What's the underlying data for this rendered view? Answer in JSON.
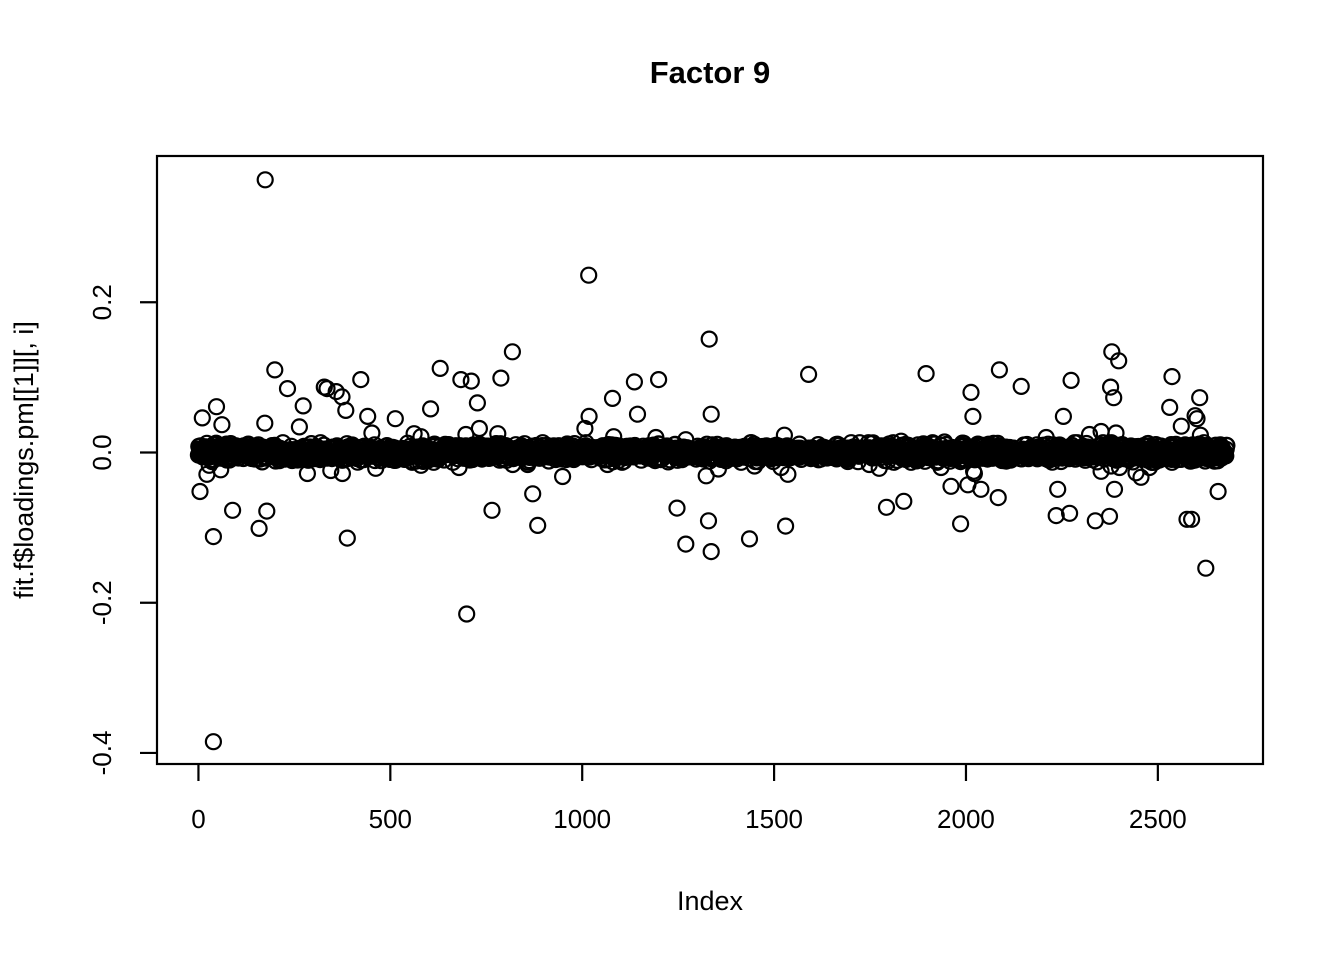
{
  "chart_data": {
    "type": "scatter",
    "title": "Factor 9",
    "xlabel": "Index",
    "ylabel": "fit.f$loadings.pm[[1]][, i]",
    "x_ticks": [
      0,
      500,
      1000,
      1500,
      2000,
      2500
    ],
    "y_ticks": [
      -0.4,
      -0.2,
      0.0,
      0.2
    ],
    "xlim": [
      -108,
      2774
    ],
    "ylim": [
      -0.4147,
      0.3947
    ],
    "n_points": 2680,
    "marker": "open-circle",
    "colors": {
      "foreground": "#000000",
      "background": "#ffffff"
    },
    "dense_band": {
      "description": "Dense horizontal band of ~2680 overlapping open circles centered at y=0, approx |y| < 0.013, spanning index 0 to ~2680",
      "center": 0.0,
      "half_width": 0.013
    },
    "outliers": [
      [
        174,
        0.363
      ],
      [
        1017,
        0.236
      ],
      [
        1331,
        0.151
      ],
      [
        818,
        0.134
      ],
      [
        2380,
        0.134
      ],
      [
        2398,
        0.122
      ],
      [
        630,
        0.112
      ],
      [
        199,
        0.11
      ],
      [
        2087,
        0.11
      ],
      [
        1896,
        0.105
      ],
      [
        1590,
        0.104
      ],
      [
        2537,
        0.101
      ],
      [
        788,
        0.099
      ],
      [
        423,
        0.097
      ],
      [
        684,
        0.097
      ],
      [
        1199,
        0.097
      ],
      [
        2274,
        0.096
      ],
      [
        711,
        0.095
      ],
      [
        1136,
        0.094
      ],
      [
        2144,
        0.088
      ],
      [
        328,
        0.087
      ],
      [
        2377,
        0.087
      ],
      [
        232,
        0.085
      ],
      [
        335,
        0.085
      ],
      [
        359,
        0.081
      ],
      [
        2013,
        0.08
      ],
      [
        374,
        0.074
      ],
      [
        2385,
        0.073
      ],
      [
        2609,
        0.073
      ],
      [
        1079,
        0.072
      ],
      [
        727,
        0.066
      ],
      [
        273,
        0.062
      ],
      [
        47,
        0.061
      ],
      [
        2531,
        0.06
      ],
      [
        605,
        0.058
      ],
      [
        384,
        0.056
      ],
      [
        1336,
        0.051
      ],
      [
        1144,
        0.051
      ],
      [
        2597,
        0.049
      ],
      [
        441,
        0.048
      ],
      [
        1018,
        0.048
      ],
      [
        2018,
        0.048
      ],
      [
        2254,
        0.048
      ],
      [
        10,
        0.046
      ],
      [
        513,
        0.045
      ],
      [
        2602,
        0.045
      ],
      [
        173,
        0.039
      ],
      [
        61,
        0.037
      ],
      [
        2561,
        0.035
      ],
      [
        263,
        0.034
      ],
      [
        1007,
        0.032
      ],
      [
        732,
        0.032
      ],
      [
        2352,
        0.028
      ],
      [
        452,
        0.026
      ],
      [
        2391,
        0.026
      ],
      [
        562,
        0.025
      ],
      [
        780,
        0.025
      ],
      [
        697,
        0.024
      ],
      [
        2322,
        0.024
      ],
      [
        1527,
        0.023
      ],
      [
        2611,
        0.023
      ],
      [
        580,
        0.021
      ],
      [
        1082,
        0.021
      ],
      [
        2209,
        0.02
      ],
      [
        1192,
        0.02
      ],
      [
        1270,
        0.017
      ],
      [
        1831,
        0.015
      ],
      [
        1944,
        0.014
      ],
      [
        1701,
        0.013
      ],
      [
        39,
        -0.385
      ],
      [
        699,
        -0.215
      ],
      [
        2625,
        -0.154
      ],
      [
        1336,
        -0.132
      ],
      [
        1270,
        -0.122
      ],
      [
        1436,
        -0.115
      ],
      [
        388,
        -0.114
      ],
      [
        39,
        -0.112
      ],
      [
        158,
        -0.101
      ],
      [
        1530,
        -0.098
      ],
      [
        884,
        -0.097
      ],
      [
        1986,
        -0.095
      ],
      [
        2337,
        -0.091
      ],
      [
        1329,
        -0.091
      ],
      [
        2576,
        -0.089
      ],
      [
        2588,
        -0.089
      ],
      [
        2374,
        -0.085
      ],
      [
        2235,
        -0.084
      ],
      [
        2270,
        -0.081
      ],
      [
        178,
        -0.078
      ],
      [
        89,
        -0.077
      ],
      [
        765,
        -0.077
      ],
      [
        1247,
        -0.074
      ],
      [
        1793,
        -0.073
      ],
      [
        1838,
        -0.065
      ],
      [
        2084,
        -0.06
      ],
      [
        871,
        -0.055
      ],
      [
        4,
        -0.052
      ],
      [
        2657,
        -0.052
      ],
      [
        2039,
        -0.049
      ],
      [
        2239,
        -0.049
      ],
      [
        2387,
        -0.049
      ],
      [
        1961,
        -0.045
      ],
      [
        2005,
        -0.043
      ],
      [
        2456,
        -0.033
      ],
      [
        949,
        -0.032
      ],
      [
        1323,
        -0.031
      ],
      [
        22,
        -0.029
      ],
      [
        1536,
        -0.029
      ],
      [
        284,
        -0.028
      ],
      [
        375,
        -0.028
      ],
      [
        2022,
        -0.028
      ],
      [
        2443,
        -0.027
      ],
      [
        2020,
        -0.025
      ],
      [
        2352,
        -0.025
      ],
      [
        345,
        -0.024
      ],
      [
        58,
        -0.023
      ],
      [
        1355,
        -0.022
      ],
      [
        462,
        -0.021
      ],
      [
        1774,
        -0.021
      ],
      [
        679,
        -0.02
      ],
      [
        1518,
        -0.02
      ],
      [
        1935,
        -0.02
      ],
      [
        2400,
        -0.02
      ],
      [
        2478,
        -0.02
      ],
      [
        1449,
        -0.018
      ],
      [
        2378,
        -0.018
      ],
      [
        28,
        -0.017
      ],
      [
        580,
        -0.017
      ],
      [
        819,
        -0.016
      ],
      [
        858,
        -0.016
      ],
      [
        1066,
        -0.016
      ],
      [
        1748,
        -0.016
      ],
      [
        2491,
        -0.013
      ]
    ]
  }
}
